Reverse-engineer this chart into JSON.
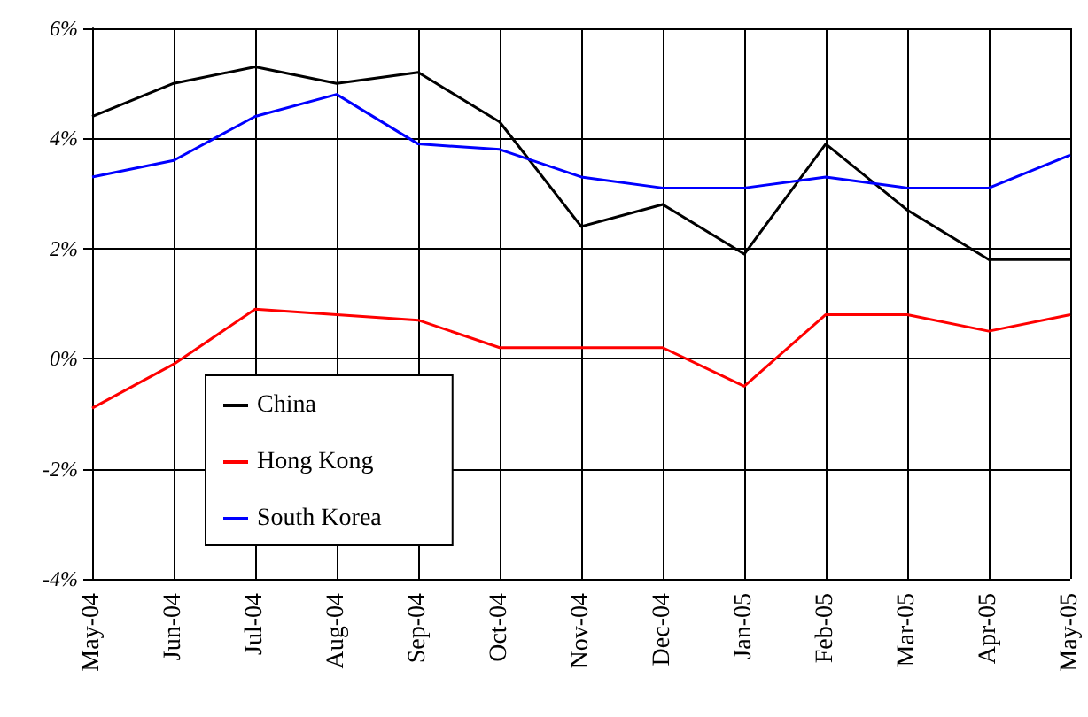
{
  "chart_data": {
    "type": "line",
    "categories": [
      "May-04",
      "Jun-04",
      "Jul-04",
      "Aug-04",
      "Sep-04",
      "Oct-04",
      "Nov-04",
      "Dec-04",
      "Jan-05",
      "Feb-05",
      "Mar-05",
      "Apr-05",
      "May-05"
    ],
    "series": [
      {
        "name": "China",
        "color": "#000000",
        "values": [
          4.4,
          5.0,
          5.3,
          5.0,
          5.2,
          4.3,
          2.4,
          2.8,
          1.9,
          3.9,
          2.7,
          1.8,
          1.8
        ]
      },
      {
        "name": "Hong Kong",
        "color": "#ff0000",
        "values": [
          -0.9,
          -0.1,
          0.9,
          0.8,
          0.7,
          0.2,
          0.2,
          0.2,
          -0.5,
          0.8,
          0.8,
          0.5,
          0.8
        ]
      },
      {
        "name": "South Korea",
        "color": "#0000ff",
        "values": [
          3.3,
          3.6,
          4.4,
          4.8,
          3.9,
          3.8,
          3.3,
          3.1,
          3.1,
          3.3,
          3.1,
          3.1,
          3.7
        ]
      }
    ],
    "ylim": [
      -4,
      6
    ],
    "yticks": [
      {
        "value": -4,
        "label": "-4%"
      },
      {
        "value": -2,
        "label": "-2%"
      },
      {
        "value": 0,
        "label": "0%"
      },
      {
        "value": 2,
        "label": "2%"
      },
      {
        "value": 4,
        "label": "4%"
      },
      {
        "value": 6,
        "label": "6%"
      }
    ],
    "grid": true,
    "legend": "bottom left",
    "marker": "none",
    "line_style": "solid"
  }
}
